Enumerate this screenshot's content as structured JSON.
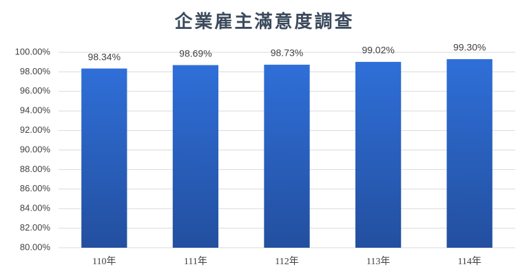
{
  "chart_data": {
    "type": "bar",
    "title": "企業雇主滿意度調查",
    "categories": [
      "110年",
      "111年",
      "112年",
      "113年",
      "114年"
    ],
    "values": [
      98.34,
      98.69,
      98.73,
      99.02,
      99.3
    ],
    "value_labels": [
      "98.34%",
      "98.69%",
      "98.73%",
      "99.02%",
      "99.30%"
    ],
    "color": "#2b62c4",
    "ylim": [
      80,
      100
    ],
    "yticks": [
      {
        "value": 80,
        "label": "80.00%"
      },
      {
        "value": 82,
        "label": "82.00%"
      },
      {
        "value": 84,
        "label": "84.00%"
      },
      {
        "value": 86,
        "label": "86.00%"
      },
      {
        "value": 88,
        "label": "88.00%"
      },
      {
        "value": 90,
        "label": "90.00%"
      },
      {
        "value": 92,
        "label": "92.00%"
      },
      {
        "value": 94,
        "label": "94.00%"
      },
      {
        "value": 96,
        "label": "96.00%"
      },
      {
        "value": 98,
        "label": "98.00%"
      },
      {
        "value": 100,
        "label": "100.00%"
      }
    ],
    "grid": true
  }
}
